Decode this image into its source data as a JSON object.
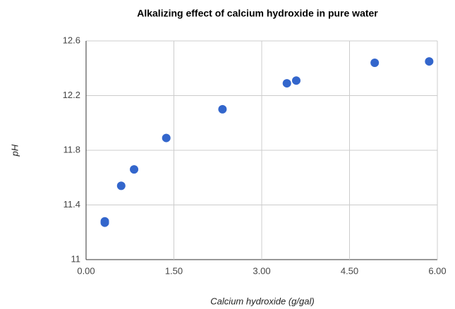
{
  "chart_data": {
    "type": "scatter",
    "title": "Alkalizing effect of calcium hydroxide in pure water",
    "x_label": "Calcium hydroxide (g/gal)",
    "y_label": "pH",
    "series": [
      {
        "color": "#3366cc",
        "x": [
          0.32,
          0.32,
          0.6,
          0.82,
          1.37,
          2.33,
          3.43,
          3.59,
          4.93,
          5.86
        ],
        "values": [
          11.27,
          11.28,
          11.54,
          11.66,
          11.89,
          12.1,
          12.29,
          12.31,
          12.44,
          12.45
        ]
      }
    ],
    "xlim": [
      0,
      6
    ],
    "ylim": [
      11,
      12.6
    ],
    "xticks": [
      {
        "value": 0,
        "label": "0.00"
      },
      {
        "value": 1.5,
        "label": "1.50"
      },
      {
        "value": 3,
        "label": "3.00"
      },
      {
        "value": 4.5,
        "label": "4.50"
      },
      {
        "value": 6,
        "label": "6.00"
      }
    ],
    "yticks": [
      11,
      11.4,
      11.8,
      12.2,
      12.6
    ],
    "grid": true
  }
}
